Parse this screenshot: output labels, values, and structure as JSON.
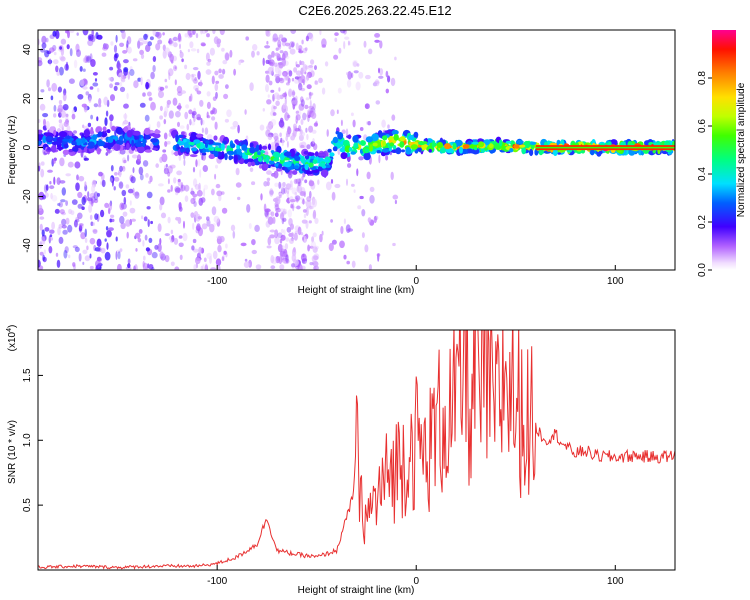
{
  "title": "C2E6.2025.263.22.45.E12",
  "chart_data": [
    {
      "type": "heatmap",
      "xlabel": "Height of straight line (km)",
      "ylabel": "Frequency (Hz)",
      "xlim": [
        -190,
        130
      ],
      "ylim": [
        -50,
        48
      ],
      "xticks": [
        -100,
        0,
        100
      ],
      "yticks": [
        -40,
        -20,
        0,
        20,
        40
      ],
      "colorbar": {
        "label": "Normalized spectral amplitude",
        "range": [
          0,
          1
        ],
        "ticks": [
          "0.0",
          "0.2",
          "0.4",
          "0.6",
          "0.8"
        ],
        "tick_values": [
          0.0,
          0.2,
          0.4,
          0.6,
          0.8
        ]
      },
      "ridge": {
        "x": [
          -190,
          -170,
          -150,
          -130,
          -120,
          -100,
          -80,
          -60,
          -45,
          -40,
          -35,
          -30,
          -20,
          -10,
          0,
          20,
          40,
          60,
          80,
          100,
          130
        ],
        "frequency": [
          3,
          2,
          4,
          2,
          2,
          0,
          -3,
          -6,
          -7,
          3,
          0,
          0,
          1,
          3,
          1,
          0,
          1,
          0,
          0,
          0,
          0
        ],
        "amplitude": [
          0.3,
          0.35,
          0.35,
          0.3,
          0.4,
          0.45,
          0.5,
          0.5,
          0.45,
          0.5,
          0.6,
          0.6,
          0.65,
          0.7,
          0.75,
          0.8,
          0.8,
          0.85,
          0.9,
          0.9,
          0.9
        ]
      }
    },
    {
      "type": "line",
      "xlabel": "Height of straight line (km)",
      "ylabel": "SNR (10 * v/v)",
      "multiplier_label": "(x10",
      "multiplier_exp": "4",
      "multiplier_close": ")",
      "xlim": [
        -190,
        130
      ],
      "ylim": [
        0,
        1.85
      ],
      "xticks": [
        -100,
        0,
        100
      ],
      "yticks": [
        "0.5",
        "1.0",
        "1.5"
      ],
      "ytick_values": [
        0.5,
        1.0,
        1.5
      ],
      "color": "#e83030",
      "series": [
        {
          "name": "SNR",
          "x": [
            -190,
            -170,
            -150,
            -130,
            -110,
            -100,
            -90,
            -80,
            -75,
            -70,
            -60,
            -50,
            -40,
            -32,
            -30,
            -28,
            -25,
            -20,
            -15,
            -10,
            -5,
            0,
            5,
            10,
            15,
            20,
            25,
            28,
            30,
            32,
            35,
            40,
            45,
            50,
            55,
            60,
            65,
            70,
            75,
            80,
            85,
            90,
            100,
            110,
            120,
            130
          ],
          "y": [
            0.02,
            0.03,
            0.02,
            0.03,
            0.03,
            0.05,
            0.1,
            0.2,
            0.4,
            0.15,
            0.12,
            0.1,
            0.15,
            0.55,
            0.95,
            0.5,
            0.4,
            0.55,
            0.7,
            0.8,
            0.9,
            1.0,
            0.85,
            1.1,
            1.2,
            1.25,
            1.6,
            1.1,
            1.85,
            1.3,
            1.45,
            1.2,
            1.55,
            1.3,
            1.15,
            1.1,
            1.0,
            1.05,
            0.95,
            0.9,
            0.92,
            0.88,
            0.87,
            0.88,
            0.87,
            0.88
          ]
        }
      ]
    }
  ]
}
